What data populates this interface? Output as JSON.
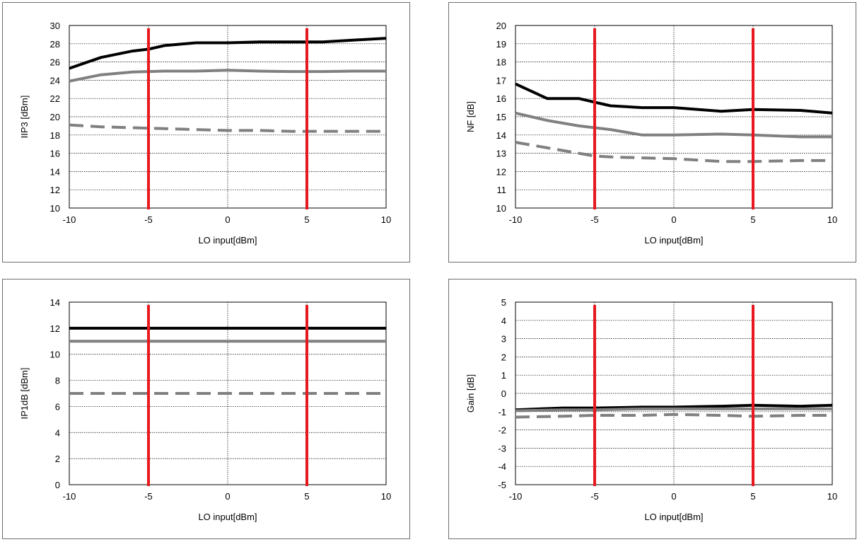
{
  "chart_data": [
    {
      "type": "line",
      "xlabel": "LO input[dBm]",
      "ylabel": "IIP3 [dBm]",
      "xlim": [
        -10,
        10
      ],
      "ylim": [
        10,
        30
      ],
      "xticks": [
        "-10",
        "-5",
        "0",
        "5",
        "10"
      ],
      "yticks": [
        "10",
        "12",
        "14",
        "16",
        "18",
        "20",
        "22",
        "24",
        "26",
        "28",
        "30"
      ],
      "grid": true,
      "markers": [
        -5,
        5
      ],
      "series": [
        {
          "x": [
            -10,
            -8,
            -6,
            -5,
            -4,
            -2,
            0,
            2,
            4,
            6,
            8,
            10
          ],
          "y": [
            25.3,
            26.5,
            27.2,
            27.4,
            27.8,
            28.1,
            28.1,
            28.2,
            28.2,
            28.2,
            28.4,
            28.6
          ],
          "color": "#000000",
          "style": "solid"
        },
        {
          "x": [
            -10,
            -8,
            -6,
            -4,
            -2,
            0,
            2,
            4,
            6,
            8,
            10
          ],
          "y": [
            23.9,
            24.6,
            24.9,
            25.0,
            25.0,
            25.1,
            25.0,
            24.95,
            24.95,
            25.0,
            25.0
          ],
          "color": "#808080",
          "style": "solid"
        },
        {
          "x": [
            -10,
            -8,
            -6,
            -4,
            -2,
            0,
            2,
            4,
            6,
            8,
            10
          ],
          "y": [
            19.1,
            18.9,
            18.8,
            18.7,
            18.6,
            18.5,
            18.5,
            18.4,
            18.4,
            18.4,
            18.4
          ],
          "color": "#808080",
          "style": "dashed"
        }
      ]
    },
    {
      "type": "line",
      "xlabel": "LO input[dBm]",
      "ylabel": "NF [dB]",
      "xlim": [
        -10,
        10
      ],
      "ylim": [
        10,
        20
      ],
      "xticks": [
        "-10",
        "-5",
        "0",
        "5",
        "10"
      ],
      "yticks": [
        "10",
        "11",
        "12",
        "13",
        "14",
        "15",
        "16",
        "17",
        "18",
        "19",
        "20"
      ],
      "grid": true,
      "markers": [
        -5,
        5
      ],
      "series": [
        {
          "x": [
            -10,
            -8,
            -6,
            -5,
            -4,
            -2,
            0,
            3,
            5,
            8,
            10
          ],
          "y": [
            16.8,
            16.0,
            16.0,
            15.8,
            15.6,
            15.5,
            15.5,
            15.3,
            15.4,
            15.35,
            15.2
          ],
          "color": "#000000",
          "style": "solid"
        },
        {
          "x": [
            -10,
            -8,
            -6,
            -5,
            -4,
            -2,
            0,
            3,
            5,
            8,
            10
          ],
          "y": [
            15.2,
            14.8,
            14.5,
            14.4,
            14.3,
            14.0,
            14.0,
            14.05,
            14.0,
            13.9,
            13.9
          ],
          "color": "#808080",
          "style": "solid"
        },
        {
          "x": [
            -10,
            -8,
            -6,
            -5,
            -4,
            -2,
            0,
            3,
            5,
            8,
            10
          ],
          "y": [
            13.6,
            13.3,
            13.0,
            12.85,
            12.8,
            12.75,
            12.7,
            12.55,
            12.55,
            12.6,
            12.6
          ],
          "color": "#808080",
          "style": "dashed"
        }
      ]
    },
    {
      "type": "line",
      "xlabel": "LO input[dBm]",
      "ylabel": "IP1dB [dBm]",
      "xlim": [
        -10,
        10
      ],
      "ylim": [
        0,
        14
      ],
      "xticks": [
        "-10",
        "-5",
        "0",
        "5",
        "10"
      ],
      "yticks": [
        "0",
        "2",
        "4",
        "6",
        "8",
        "10",
        "12",
        "14"
      ],
      "grid": true,
      "markers": [
        -5,
        5
      ],
      "series": [
        {
          "x": [
            -10,
            10
          ],
          "y": [
            12,
            12
          ],
          "color": "#000000",
          "style": "solid"
        },
        {
          "x": [
            -10,
            10
          ],
          "y": [
            11,
            11
          ],
          "color": "#808080",
          "style": "solid"
        },
        {
          "x": [
            -10,
            10
          ],
          "y": [
            7,
            7
          ],
          "color": "#808080",
          "style": "dashed"
        }
      ]
    },
    {
      "type": "line",
      "xlabel": "LO input[dBm]",
      "ylabel": "Gain [dB]",
      "xlim": [
        -10,
        10
      ],
      "ylim": [
        -5,
        5
      ],
      "xticks": [
        "-10",
        "-5",
        "0",
        "5",
        "10"
      ],
      "yticks": [
        "-5",
        "-4",
        "-3",
        "-2",
        "-1",
        "0",
        "1",
        "2",
        "3",
        "4",
        "5"
      ],
      "grid": true,
      "markers": [
        -5,
        5
      ],
      "series": [
        {
          "x": [
            -10,
            -7,
            -5,
            -2,
            0,
            3,
            5,
            8,
            10
          ],
          "y": [
            -0.9,
            -0.8,
            -0.8,
            -0.75,
            -0.75,
            -0.7,
            -0.65,
            -0.7,
            -0.65
          ],
          "color": "#000000",
          "style": "solid"
        },
        {
          "x": [
            -10,
            -7,
            -5,
            -2,
            0,
            3,
            5,
            8,
            10
          ],
          "y": [
            -0.95,
            -0.9,
            -0.9,
            -0.85,
            -0.85,
            -0.85,
            -0.85,
            -0.85,
            -0.85
          ],
          "color": "#808080",
          "style": "solid"
        },
        {
          "x": [
            -10,
            -7,
            -5,
            -2,
            0,
            3,
            5,
            8,
            10
          ],
          "y": [
            -1.3,
            -1.25,
            -1.2,
            -1.2,
            -1.15,
            -1.2,
            -1.25,
            -1.2,
            -1.2
          ],
          "color": "#808080",
          "style": "dashed"
        }
      ]
    }
  ],
  "colors": {
    "marker": "#e8191e",
    "grid": "#000000",
    "frame": "#6e6e6e"
  }
}
